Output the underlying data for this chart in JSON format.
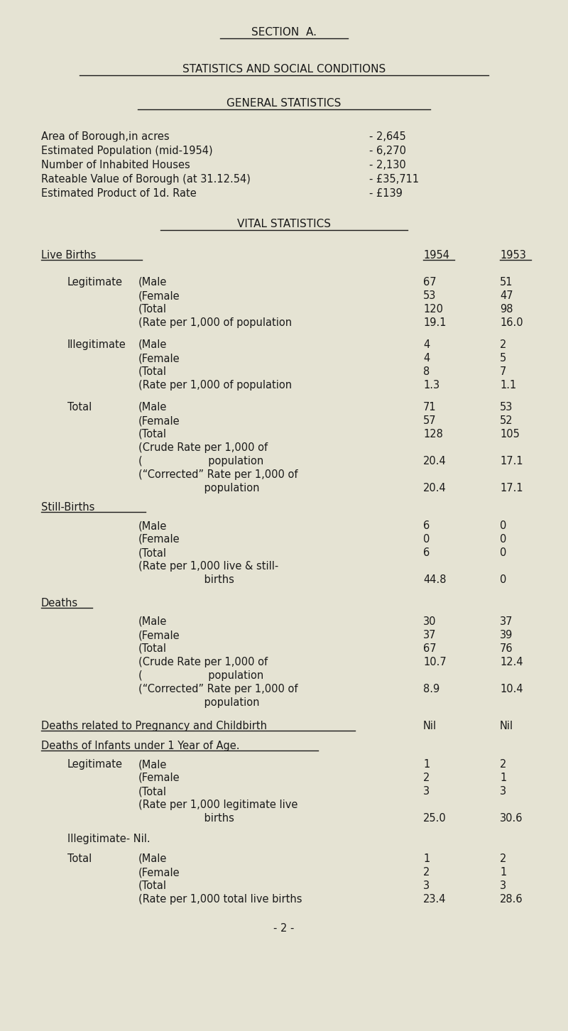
{
  "bg_color": "#e5e3d3",
  "text_color": "#1a1a1a",
  "title1": "SECTION  A.",
  "title2": "STATISTICS AND SOCIAL CONDITIONS",
  "title3": "GENERAL STATISTICS",
  "general_stats": [
    [
      "Area of Borough,in acres",
      "- 2,645"
    ],
    [
      "Estimated Population (mid-1954)",
      "- 6,270"
    ],
    [
      "Number of Inhabited Houses",
      "- 2,130"
    ],
    [
      "Rateable Value of Borough (at 31.12.54)",
      "- £35,711"
    ],
    [
      "Estimated Product of 1d. Rate",
      "- £139"
    ]
  ],
  "title4": "VITAL STATISTICS",
  "section_live_births": "Live Births",
  "col1954": "1954",
  "col1953": "1953",
  "rows": [
    {
      "label": "Legitimate",
      "sub": "(Male",
      "v54": "67",
      "v53": "51",
      "gap_after": false
    },
    {
      "label": "",
      "sub": "(Female",
      "v54": "53",
      "v53": "47",
      "gap_after": false
    },
    {
      "label": "",
      "sub": "(Total",
      "v54": "120",
      "v53": "98",
      "gap_after": false
    },
    {
      "label": "",
      "sub": "(Rate per 1,000 of population",
      "v54": "19.1",
      "v53": "16.0",
      "gap_after": true
    },
    {
      "label": "Illegitimate",
      "sub": "(Male",
      "v54": "4",
      "v53": "2",
      "gap_after": false
    },
    {
      "label": "",
      "sub": "(Female",
      "v54": "4",
      "v53": "5",
      "gap_after": false
    },
    {
      "label": "",
      "sub": "(Total",
      "v54": "8",
      "v53": "7",
      "gap_after": false
    },
    {
      "label": "",
      "sub": "(Rate per 1,000 of population",
      "v54": "1.3",
      "v53": "1.1",
      "gap_after": true
    },
    {
      "label": "Total",
      "sub": "(Male",
      "v54": "71",
      "v53": "53",
      "gap_after": false
    },
    {
      "label": "",
      "sub": "(Female",
      "v54": "57",
      "v53": "52",
      "gap_after": false
    },
    {
      "label": "",
      "sub": "(Total",
      "v54": "128",
      "v53": "105",
      "gap_after": false
    },
    {
      "label": "",
      "sub": "(Crude Rate per 1,000 of",
      "v54": "",
      "v53": "",
      "gap_after": false
    },
    {
      "label": "",
      "sub": "(                    population",
      "v54": "20.4",
      "v53": "17.1",
      "gap_after": false
    },
    {
      "label": "",
      "sub": "(“Corrected” Rate per 1,000 of",
      "v54": "",
      "v53": "",
      "gap_after": false
    },
    {
      "label": "",
      "sub": "                    population",
      "v54": "20.4",
      "v53": "17.1",
      "gap_after": false
    }
  ],
  "section_stillbirths": "Still-Births",
  "sb_rows": [
    {
      "sub": "(Male",
      "v54": "6",
      "v53": "0"
    },
    {
      "sub": "(Female",
      "v54": "0",
      "v53": "0"
    },
    {
      "sub": "(Total",
      "v54": "6",
      "v53": "0"
    },
    {
      "sub": "(Rate per 1,000 live & still-",
      "v54": "",
      "v53": ""
    },
    {
      "sub": "                    births",
      "v54": "44.8",
      "v53": "0"
    }
  ],
  "section_deaths": "Deaths",
  "d_rows": [
    {
      "sub": "(Male",
      "v54": "30",
      "v53": "37"
    },
    {
      "sub": "(Female",
      "v54": "37",
      "v53": "39"
    },
    {
      "sub": "(Total",
      "v54": "67",
      "v53": "76"
    },
    {
      "sub": "(Crude Rate per 1,000 of",
      "v54": "10.7",
      "v53": "12.4"
    },
    {
      "sub": "(                    population",
      "v54": "",
      "v53": ""
    },
    {
      "sub": "(“Corrected” Rate per 1,000 of",
      "v54": "8.9",
      "v53": "10.4"
    },
    {
      "sub": "                    population",
      "v54": "",
      "v53": ""
    }
  ],
  "section_preg": "Deaths related to Pregnancy and Childbirth",
  "preg_v54": "Nil",
  "preg_v53": "Nil",
  "section_infants": "Deaths of Infants under 1 Year of Age.",
  "infant_rows": [
    {
      "label": "Legitimate",
      "sub": "(Male",
      "v54": "1",
      "v53": "2"
    },
    {
      "label": "",
      "sub": "(Female",
      "v54": "2",
      "v53": "1"
    },
    {
      "label": "",
      "sub": "(Total",
      "v54": "3",
      "v53": "3"
    },
    {
      "label": "",
      "sub": "(Rate per 1,000 legitimate live",
      "v54": "",
      "v53": ""
    },
    {
      "label": "",
      "sub": "                    births",
      "v54": "25.0",
      "v53": "30.6"
    }
  ],
  "illegitimate_nil": "Illegitimate- Nil.",
  "infant_total_rows": [
    {
      "label": "Total",
      "sub": "(Male",
      "v54": "1",
      "v53": "2"
    },
    {
      "label": "",
      "sub": "(Female",
      "v54": "2",
      "v53": "1"
    },
    {
      "label": "",
      "sub": "(Total",
      "v54": "3",
      "v53": "3"
    },
    {
      "label": "",
      "sub": "(Rate per 1,000 total live births",
      "v54": "23.4",
      "v53": "28.6"
    }
  ],
  "footer": "- 2 -"
}
